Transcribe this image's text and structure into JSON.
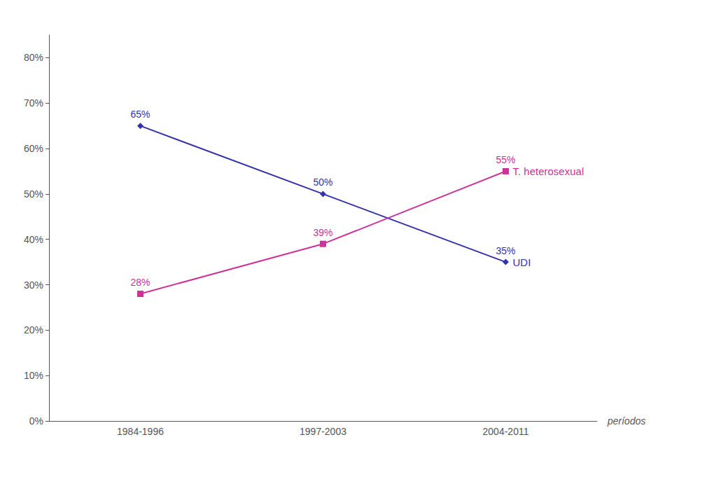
{
  "chart_data": {
    "type": "line",
    "categories": [
      "1984-1996",
      "1997-2003",
      "2004-2011"
    ],
    "xlabel": "períodos",
    "series": [
      {
        "name": "UDI",
        "color": "#3333aa",
        "marker": "diamond",
        "values": [
          65,
          50,
          35
        ],
        "value_labels": [
          "65%",
          "50%",
          "35%"
        ]
      },
      {
        "name": "T. heterosexual",
        "color": "#cc3399",
        "marker": "square",
        "values": [
          28,
          39,
          55
        ],
        "value_labels": [
          "28%",
          "39%",
          "55%"
        ]
      }
    ],
    "ylim": [
      0,
      85
    ],
    "yticks": [
      {
        "value": 0,
        "label": "0%"
      },
      {
        "value": 10,
        "label": "10%"
      },
      {
        "value": 20,
        "label": "20%"
      },
      {
        "value": 30,
        "label": "30%"
      },
      {
        "value": 40,
        "label": "40%"
      },
      {
        "value": 50,
        "label": "50%"
      },
      {
        "value": 60,
        "label": "60%"
      },
      {
        "value": 70,
        "label": "70%"
      },
      {
        "value": 80,
        "label": "80%"
      }
    ],
    "grid": false,
    "data_labels": true
  }
}
